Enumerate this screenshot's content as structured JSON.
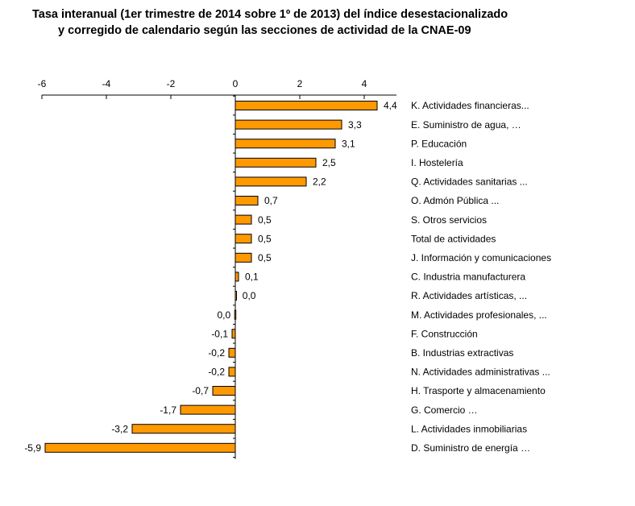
{
  "chart_data": {
    "type": "bar",
    "orientation": "horizontal",
    "title_lines": [
      "Tasa interanual (1er trimestre de 2014 sobre 1º de 2013) del índice desestacionalizado",
      "y corregido de calendario según las secciones de actividad  de la CNAE-09"
    ],
    "xlabel": "",
    "ylabel": "",
    "xlim": [
      -6,
      5
    ],
    "xticks": [
      -6,
      -4,
      -2,
      0,
      2,
      4
    ],
    "xtick_labels": [
      "-6",
      "-4",
      "-2",
      "0",
      "2",
      "4"
    ],
    "axis_position": "top",
    "grid": false,
    "legend": false,
    "bar_color": "#FF9900",
    "bar_edge_color": "#000000",
    "categories": [
      "K. Actividades financieras...",
      "E. Suministro de agua, …",
      "P. Educación",
      "I. Hostelería",
      "Q. Actividades sanitarias ...",
      "O. Admón Pública ...",
      "S. Otros servicios",
      "Total de actividades",
      "J. Información y comunicaciones",
      "C. Industria manufacturera",
      "R. Actividades artísticas, ...",
      "M. Actividades profesionales, ...",
      "F. Construcción",
      "B. Industrias extractivas",
      "N. Actividades administrativas ...",
      "H. Trasporte y almacenamiento",
      "G. Comercio …",
      "L. Actividades inmobiliarias",
      "D. Suministro de energía …"
    ],
    "values": [
      4.4,
      3.3,
      3.1,
      2.5,
      2.2,
      0.7,
      0.5,
      0.5,
      0.5,
      0.1,
      0.02,
      -0.02,
      -0.1,
      -0.2,
      -0.2,
      -0.7,
      -1.7,
      -3.2,
      -5.9
    ],
    "value_labels": [
      "4,4",
      "3,3",
      "3,1",
      "2,5",
      "2,2",
      "0,7",
      "0,5",
      "0,5",
      "0,5",
      "0,1",
      "0,0",
      "0,0",
      "-0,1",
      "-0,2",
      "-0,2",
      "-0,7",
      "-1,7",
      "-3,2",
      "-5,9"
    ]
  }
}
